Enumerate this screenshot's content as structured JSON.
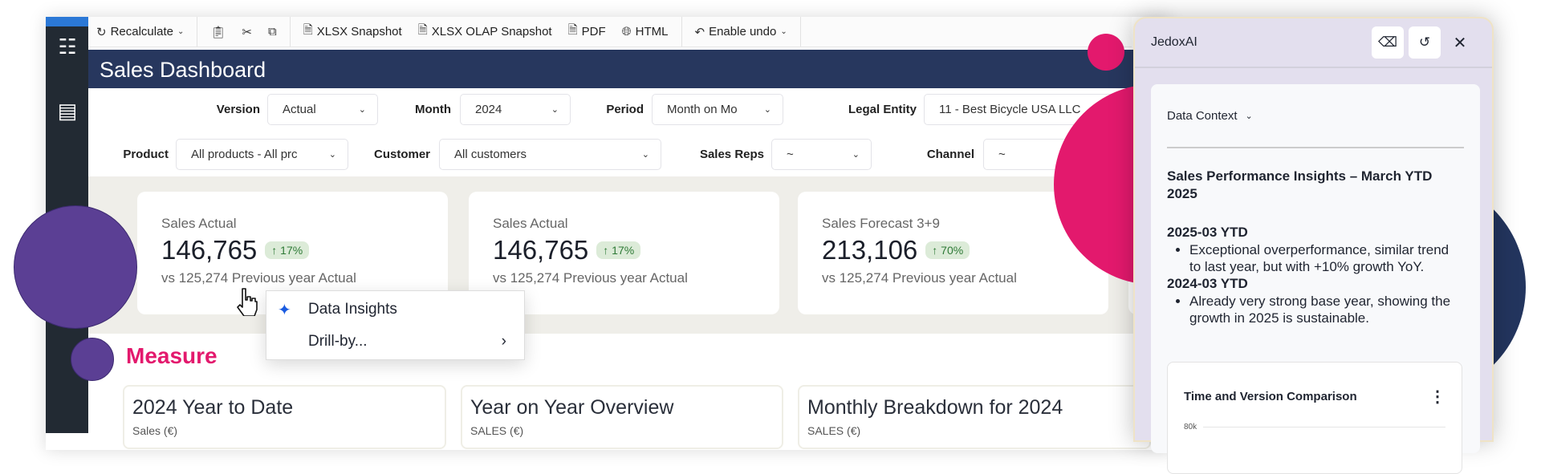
{
  "toolbar": {
    "recalculate": "Recalculate",
    "xlsx_snapshot": "XLSX Snapshot",
    "xlsx_olap_snapshot": "XLSX OLAP Snapshot",
    "pdf": "PDF",
    "html": "HTML",
    "enable_undo": "Enable undo"
  },
  "header": {
    "title": "Sales Dashboard"
  },
  "filters": {
    "version": {
      "label": "Version",
      "value": "Actual"
    },
    "month": {
      "label": "Month",
      "value": "2024"
    },
    "period": {
      "label": "Period",
      "value": "Month on Mo"
    },
    "legal_entity": {
      "label": "Legal Entity",
      "value": "11 - Best Bicycle USA LLC"
    },
    "product": {
      "label": "Product",
      "value": "All products - All prc"
    },
    "customer": {
      "label": "Customer",
      "value": "All customers"
    },
    "sales_reps": {
      "label": "Sales Reps",
      "value": "~"
    },
    "channel": {
      "label": "Channel",
      "value": "~"
    }
  },
  "kpis": [
    {
      "label": "Sales Actual",
      "value": "146,765",
      "change": "↑ 17%",
      "sub": "vs 125,274 Previous year Actual"
    },
    {
      "label": "Sales Actual",
      "value": "146,765",
      "change": "↑ 17%",
      "sub": "vs 125,274 Previous year Actual"
    },
    {
      "label": "Sales Forecast 3+9",
      "value": "213,106",
      "change": "↑ 70%",
      "sub": "vs 125,274 Previous year Actual"
    }
  ],
  "context_menu": {
    "items": [
      {
        "label": "Data Insights",
        "icon": "sparkles-icon"
      },
      {
        "label": "Drill-by...",
        "icon": "chevron-right-icon"
      }
    ]
  },
  "section": {
    "title": "Measure"
  },
  "panels": [
    {
      "title": "2024 Year to Date",
      "subtitle": "Sales (€)"
    },
    {
      "title": "Year on Year Overview",
      "subtitle": "SALES (€)"
    },
    {
      "title": "Monthly Breakdown for 2024",
      "subtitle": "SALES (€)"
    }
  ],
  "ai_panel": {
    "title": "JedoxAI",
    "data_context": "Data Context",
    "heading": "Sales Performance Insights – March YTD 2025",
    "sections": [
      {
        "title": "2025-03 YTD",
        "bullet": "Exceptional overperformance, similar trend to last year, but with +10% growth YoY."
      },
      {
        "title": "2024-03 YTD",
        "bullet": "Already very strong base year, showing the growth in 2025 is sustainable."
      }
    ],
    "chart": {
      "title": "Time and Version Comparison",
      "y_tick": "80k"
    }
  },
  "colors": {
    "sidebar": "#222a33",
    "titlebar": "#27375e",
    "accent_pink": "#e3196d",
    "purple": "#5b3f94",
    "navy": "#23355e",
    "panel": "#e3dfee"
  }
}
